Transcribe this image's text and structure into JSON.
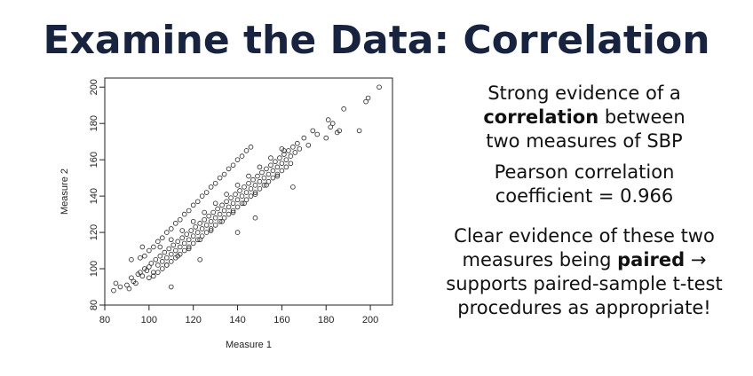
{
  "slide": {
    "title": "Examine the Data: Correlation"
  },
  "bullets": {
    "b1_pre": "Strong evidence of a",
    "b1_bold": "correlation",
    "b1_post": " between",
    "b1_line3": "two measures of SBP",
    "b2_line1": "Pearson correlation",
    "b2_line2": "coefficient = 0.966",
    "b3_line1": "Clear evidence of these two",
    "b3_pre": "measures being ",
    "b3_bold": "paired",
    "b3_post": " →",
    "b3_line3": "supports paired-sample t-test",
    "b3_line4": "procedures as appropriate!"
  },
  "chart_data": {
    "type": "scatter",
    "xlabel": "Measure 1",
    "ylabel": "Measure 2",
    "xlim": [
      80,
      210
    ],
    "ylim": [
      80,
      205
    ],
    "x_ticks": [
      80,
      100,
      120,
      140,
      160,
      180,
      200
    ],
    "y_ticks": [
      80,
      100,
      120,
      140,
      160,
      180,
      200
    ],
    "grid": false,
    "marker": "open-circle",
    "points": [
      [
        84,
        88
      ],
      [
        85,
        92
      ],
      [
        87,
        90
      ],
      [
        90,
        91
      ],
      [
        91,
        89
      ],
      [
        92,
        95
      ],
      [
        93,
        93
      ],
      [
        94,
        92
      ],
      [
        95,
        97
      ],
      [
        96,
        98
      ],
      [
        97,
        96
      ],
      [
        98,
        100
      ],
      [
        99,
        99
      ],
      [
        100,
        101
      ],
      [
        101,
        103
      ],
      [
        102,
        98
      ],
      [
        103,
        105
      ],
      [
        104,
        102
      ],
      [
        105,
        107
      ],
      [
        106,
        104
      ],
      [
        107,
        109
      ],
      [
        108,
        106
      ],
      [
        109,
        111
      ],
      [
        110,
        108
      ],
      [
        111,
        113
      ],
      [
        112,
        110
      ],
      [
        113,
        115
      ],
      [
        114,
        112
      ],
      [
        115,
        117
      ],
      [
        116,
        114
      ],
      [
        117,
        119
      ],
      [
        118,
        116
      ],
      [
        119,
        121
      ],
      [
        120,
        118
      ],
      [
        121,
        123
      ],
      [
        122,
        120
      ],
      [
        123,
        125
      ],
      [
        124,
        122
      ],
      [
        125,
        127
      ],
      [
        126,
        124
      ],
      [
        127,
        129
      ],
      [
        128,
        126
      ],
      [
        129,
        131
      ],
      [
        130,
        128
      ],
      [
        131,
        133
      ],
      [
        132,
        130
      ],
      [
        133,
        135
      ],
      [
        134,
        132
      ],
      [
        135,
        137
      ],
      [
        136,
        134
      ],
      [
        137,
        139
      ],
      [
        138,
        136
      ],
      [
        139,
        141
      ],
      [
        140,
        138
      ],
      [
        141,
        143
      ],
      [
        142,
        140
      ],
      [
        143,
        145
      ],
      [
        144,
        142
      ],
      [
        145,
        147
      ],
      [
        146,
        144
      ],
      [
        147,
        149
      ],
      [
        148,
        146
      ],
      [
        149,
        151
      ],
      [
        150,
        148
      ],
      [
        151,
        153
      ],
      [
        152,
        150
      ],
      [
        153,
        155
      ],
      [
        154,
        152
      ],
      [
        155,
        157
      ],
      [
        156,
        154
      ],
      [
        157,
        159
      ],
      [
        158,
        156
      ],
      [
        159,
        161
      ],
      [
        160,
        158
      ],
      [
        161,
        163
      ],
      [
        162,
        160
      ],
      [
        163,
        165
      ],
      [
        164,
        162
      ],
      [
        165,
        167
      ],
      [
        166,
        164
      ],
      [
        167,
        169
      ],
      [
        168,
        166
      ],
      [
        96,
        106
      ],
      [
        98,
        107
      ],
      [
        100,
        110
      ],
      [
        102,
        112
      ],
      [
        104,
        115
      ],
      [
        106,
        117
      ],
      [
        108,
        120
      ],
      [
        110,
        122
      ],
      [
        112,
        125
      ],
      [
        114,
        127
      ],
      [
        116,
        130
      ],
      [
        118,
        132
      ],
      [
        120,
        135
      ],
      [
        122,
        137
      ],
      [
        124,
        140
      ],
      [
        126,
        142
      ],
      [
        128,
        145
      ],
      [
        130,
        147
      ],
      [
        132,
        150
      ],
      [
        134,
        152
      ],
      [
        136,
        155
      ],
      [
        138,
        157
      ],
      [
        140,
        160
      ],
      [
        142,
        162
      ],
      [
        144,
        165
      ],
      [
        146,
        167
      ],
      [
        100,
        95
      ],
      [
        102,
        96
      ],
      [
        104,
        98
      ],
      [
        106,
        100
      ],
      [
        108,
        102
      ],
      [
        110,
        104
      ],
      [
        112,
        106
      ],
      [
        114,
        108
      ],
      [
        116,
        110
      ],
      [
        118,
        112
      ],
      [
        120,
        114
      ],
      [
        122,
        116
      ],
      [
        124,
        118
      ],
      [
        126,
        120
      ],
      [
        128,
        122
      ],
      [
        130,
        124
      ],
      [
        132,
        126
      ],
      [
        134,
        128
      ],
      [
        136,
        130
      ],
      [
        138,
        132
      ],
      [
        140,
        134
      ],
      [
        142,
        136
      ],
      [
        144,
        138
      ],
      [
        146,
        140
      ],
      [
        148,
        142
      ],
      [
        150,
        144
      ],
      [
        152,
        146
      ],
      [
        154,
        148
      ],
      [
        156,
        150
      ],
      [
        158,
        152
      ],
      [
        160,
        154
      ],
      [
        162,
        156
      ],
      [
        164,
        158
      ],
      [
        105,
        112
      ],
      [
        110,
        116
      ],
      [
        115,
        121
      ],
      [
        120,
        126
      ],
      [
        125,
        131
      ],
      [
        130,
        136
      ],
      [
        135,
        141
      ],
      [
        140,
        146
      ],
      [
        145,
        151
      ],
      [
        150,
        156
      ],
      [
        155,
        161
      ],
      [
        160,
        166
      ],
      [
        108,
        102
      ],
      [
        113,
        107
      ],
      [
        118,
        111
      ],
      [
        123,
        116
      ],
      [
        128,
        121
      ],
      [
        133,
        126
      ],
      [
        138,
        131
      ],
      [
        143,
        136
      ],
      [
        148,
        141
      ],
      [
        153,
        146
      ],
      [
        158,
        151
      ],
      [
        110,
        90
      ],
      [
        97,
        112
      ],
      [
        92,
        105
      ],
      [
        123,
        105
      ],
      [
        140,
        120
      ],
      [
        148,
        128
      ],
      [
        161,
        165
      ],
      [
        165,
        145
      ],
      [
        170,
        172
      ],
      [
        172,
        168
      ],
      [
        174,
        176
      ],
      [
        176,
        174
      ],
      [
        180,
        172
      ],
      [
        181,
        182
      ],
      [
        182,
        178
      ],
      [
        183,
        180
      ],
      [
        185,
        175
      ],
      [
        186,
        176
      ],
      [
        188,
        188
      ],
      [
        195,
        176
      ],
      [
        198,
        192
      ],
      [
        199,
        194
      ],
      [
        204,
        200
      ]
    ]
  }
}
